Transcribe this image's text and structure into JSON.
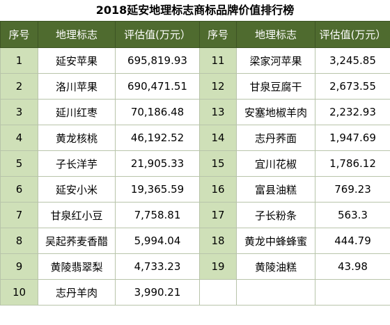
{
  "title": "2018延安地理标志商标品牌价值排行榜",
  "headers": [
    "序号",
    "地理标志",
    "评估值(万元）",
    "序号",
    "地理标志",
    "评估值(万元）"
  ],
  "rows": [
    {
      "n1": "1",
      "name1": "延安苹果",
      "v1": "695,819.93",
      "n2": "11",
      "name2": "梁家河苹果",
      "v2": "3,245.85"
    },
    {
      "n1": "2",
      "name1": "洛川苹果",
      "v1": "690,471.51",
      "n2": "12",
      "name2": "甘泉豆腐干",
      "v2": "2,673.55"
    },
    {
      "n1": "3",
      "name1": "延川红枣",
      "v1": "70,186.48",
      "n2": "13",
      "name2": "安塞地椒羊肉",
      "v2": "2,232.93"
    },
    {
      "n1": "4",
      "name1": "黄龙核桃",
      "v1": "46,192.52",
      "n2": "14",
      "name2": "志丹荞面",
      "v2": "1,947.69"
    },
    {
      "n1": "5",
      "name1": "子长洋芋",
      "v1": "21,905.33",
      "n2": "15",
      "name2": "宜川花椒",
      "v2": "1,786.12"
    },
    {
      "n1": "6",
      "name1": "延安小米",
      "v1": "19,365.59",
      "n2": "16",
      "name2": "富县油糕",
      "v2": "769.23"
    },
    {
      "n1": "7",
      "name1": "甘泉红小豆",
      "v1": "7,758.81",
      "n2": "17",
      "name2": "子长粉条",
      "v2": "563.3"
    },
    {
      "n1": "8",
      "name1": "吴起荞麦香醋",
      "v1": "5,994.04",
      "n2": "18",
      "name2": "黄龙中蜂蜂蜜",
      "v2": "444.79"
    },
    {
      "n1": "9",
      "name1": "黄陵翡翠梨",
      "v1": "4,733.23",
      "n2": "19",
      "name2": "黄陵油糕",
      "v2": "43.98"
    },
    {
      "n1": "10",
      "name1": "志丹羊肉",
      "v1": "3,990.21",
      "n2": "",
      "name2": "",
      "v2": ""
    }
  ]
}
